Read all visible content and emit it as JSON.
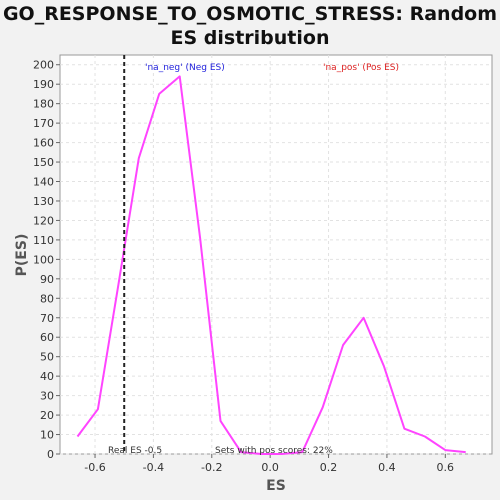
{
  "chart_data": {
    "type": "line",
    "title_line1": "GO_RESPONSE_TO_OSMOTIC_STRESS: Random",
    "title_line2": "ES distribution",
    "xlabel": "ES",
    "ylabel": "P(ES)",
    "xlim": [
      -0.72,
      0.76
    ],
    "ylim": [
      0,
      205
    ],
    "xticks": [
      -0.6,
      -0.4,
      -0.2,
      0.0,
      0.2,
      0.4,
      0.6
    ],
    "xtick_labels": [
      "-0.6",
      "-0.4",
      "-0.2",
      "0.0",
      "0.2",
      "0.4",
      "0.6"
    ],
    "yticks": [
      0,
      10,
      20,
      30,
      40,
      50,
      60,
      70,
      80,
      90,
      100,
      110,
      120,
      130,
      140,
      150,
      160,
      170,
      180,
      190,
      200
    ],
    "grid": true,
    "series": [
      {
        "color": "#ff44ff",
        "x": [
          -0.66,
          -0.59,
          -0.52,
          -0.45,
          -0.38,
          -0.31,
          -0.24,
          -0.17,
          -0.1,
          -0.03,
          0.04,
          0.11,
          0.18,
          0.25,
          0.32,
          0.39,
          0.46,
          0.53,
          0.6,
          0.67
        ],
        "y": [
          9,
          23,
          87,
          152,
          185,
          194,
          111,
          17,
          1,
          0,
          0,
          1,
          24,
          56,
          70,
          45,
          13,
          9,
          2,
          1
        ]
      }
    ],
    "real_es": -0.5,
    "annotations": {
      "neg_label": "'na_neg' (Neg ES)",
      "neg_color": "#2222dd",
      "pos_label": "'na_pos' (Pos ES)",
      "pos_color": "#dd2222",
      "real_es_label": "Real ES -0.5",
      "pos_scores_label": "Sets with pos scores: 22%"
    }
  }
}
